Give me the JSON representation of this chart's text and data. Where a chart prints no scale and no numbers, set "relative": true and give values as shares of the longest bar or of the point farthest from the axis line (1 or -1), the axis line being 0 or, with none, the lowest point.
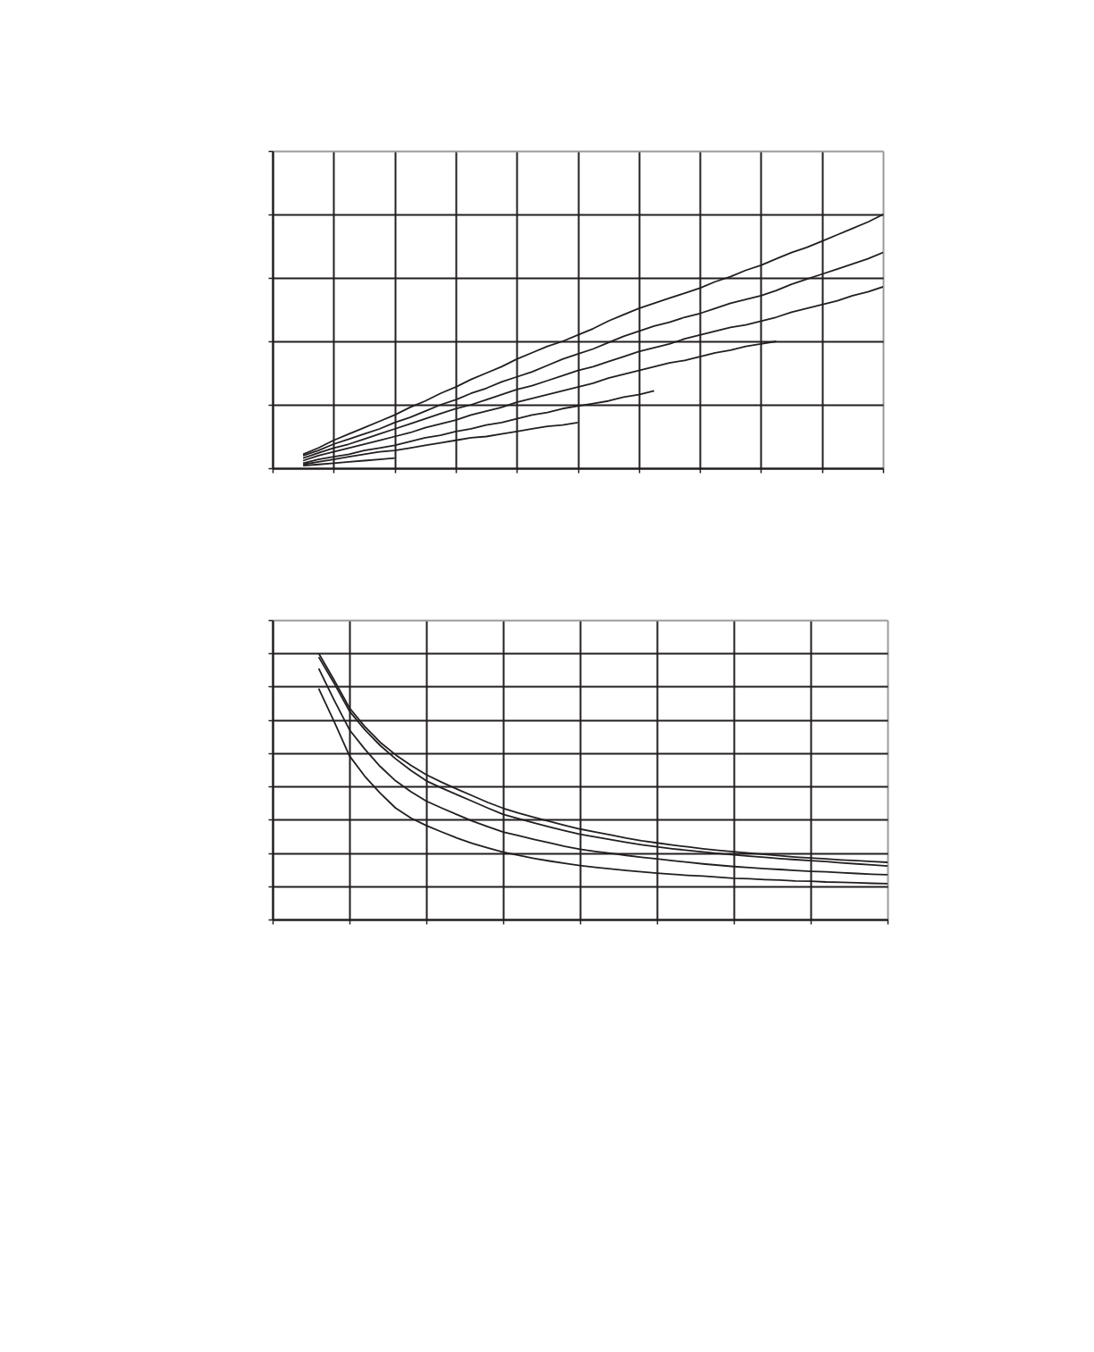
{
  "chart_data": [
    {
      "type": "line",
      "relative": true,
      "tick_labels": false,
      "grid": true,
      "categories": [
        null,
        null,
        null,
        null,
        null,
        null,
        null,
        null,
        null,
        null,
        null,
        null,
        null,
        null,
        null,
        null,
        null,
        null,
        null,
        null,
        null,
        null,
        null,
        null,
        null,
        null,
        null,
        null,
        null,
        null,
        null,
        null,
        null,
        null,
        null,
        null,
        null,
        null,
        null,
        null,
        null
      ],
      "series": [
        {
          "color": "#231f20",
          "values": [
            null,
            null,
            0.055,
            0.08,
            0.11,
            0.135,
            0.16,
            0.185,
            0.21,
            0.24,
            0.265,
            0.295,
            0.32,
            0.35,
            0.375,
            0.4,
            0.43,
            0.455,
            0.48,
            0.5,
            0.525,
            0.55,
            0.58,
            0.605,
            0.63,
            0.65,
            0.67,
            0.69,
            0.71,
            0.735,
            0.755,
            0.78,
            0.8,
            0.825,
            0.85,
            0.87,
            0.895,
            0.92,
            0.945,
            0.97,
            1.0
          ]
        },
        {
          "color": "#231f20",
          "values": [
            null,
            null,
            0.05,
            0.07,
            0.095,
            0.115,
            0.135,
            0.155,
            0.18,
            0.2,
            0.225,
            0.25,
            0.27,
            0.295,
            0.315,
            0.34,
            0.36,
            0.38,
            0.405,
            0.43,
            0.45,
            0.47,
            0.495,
            0.52,
            0.54,
            0.56,
            0.575,
            0.595,
            0.61,
            0.63,
            0.65,
            0.665,
            0.68,
            0.7,
            0.725,
            0.745,
            0.765,
            0.785,
            0.805,
            0.825,
            0.85
          ]
        },
        {
          "color": "#231f20",
          "values": [
            null,
            null,
            0.04,
            0.06,
            0.08,
            0.095,
            0.115,
            0.135,
            0.155,
            0.175,
            0.195,
            0.215,
            0.235,
            0.25,
            0.27,
            0.29,
            0.31,
            0.325,
            0.345,
            0.365,
            0.385,
            0.4,
            0.42,
            0.44,
            0.46,
            0.475,
            0.49,
            0.51,
            0.525,
            0.54,
            0.555,
            0.565,
            0.58,
            0.595,
            0.615,
            0.63,
            0.645,
            0.66,
            0.68,
            0.695,
            0.715
          ]
        },
        {
          "color": "#231f20",
          "values": [
            null,
            null,
            0.03,
            0.05,
            0.065,
            0.08,
            0.095,
            0.11,
            0.125,
            0.14,
            0.16,
            0.175,
            0.19,
            0.21,
            0.225,
            0.24,
            0.26,
            0.275,
            0.29,
            0.305,
            0.32,
            0.335,
            0.355,
            0.37,
            0.385,
            0.4,
            0.415,
            0.425,
            0.44,
            0.455,
            0.465,
            0.48,
            0.49,
            0.5,
            null,
            null,
            null,
            null,
            null,
            null,
            null
          ]
        },
        {
          "color": "#231f20",
          "values": [
            null,
            null,
            0.02,
            0.035,
            0.045,
            0.055,
            0.07,
            0.08,
            0.09,
            0.105,
            0.12,
            0.13,
            0.145,
            0.155,
            0.17,
            0.18,
            0.195,
            0.21,
            0.22,
            0.235,
            0.245,
            0.255,
            0.265,
            0.28,
            0.29,
            0.305,
            null,
            null,
            null,
            null,
            null,
            null,
            null,
            null,
            null,
            null,
            null,
            null,
            null,
            null,
            null
          ]
        },
        {
          "color": "#231f20",
          "values": [
            null,
            null,
            0.015,
            0.025,
            0.035,
            0.045,
            0.055,
            0.065,
            0.07,
            0.08,
            0.09,
            0.1,
            0.11,
            0.12,
            0.125,
            0.135,
            0.145,
            0.155,
            0.165,
            0.17,
            0.18,
            null,
            null,
            null,
            null,
            null,
            null,
            null,
            null,
            null,
            null,
            null,
            null,
            null,
            null,
            null,
            null,
            null,
            null,
            null,
            null
          ]
        },
        {
          "color": "#231f20",
          "values": [
            null,
            null,
            0.01,
            0.015,
            0.02,
            0.025,
            0.03,
            0.035,
            0.04,
            null,
            null,
            null,
            null,
            null,
            null,
            null,
            null,
            null,
            null,
            null,
            null,
            null,
            null,
            null,
            null,
            null,
            null,
            null,
            null,
            null,
            null,
            null,
            null,
            null,
            null,
            null,
            null,
            null,
            null,
            null,
            null
          ]
        }
      ]
    },
    {
      "type": "line",
      "relative": true,
      "tick_labels": false,
      "grid": true,
      "categories": [
        null,
        null,
        null,
        null,
        null,
        null,
        null,
        null,
        null,
        null,
        null,
        null,
        null,
        null,
        null,
        null,
        null,
        null,
        null,
        null,
        null,
        null,
        null,
        null,
        null,
        null,
        null,
        null,
        null,
        null,
        null,
        null,
        null,
        null,
        null,
        null,
        null,
        null,
        null,
        null,
        null
      ],
      "series": [
        {
          "color": "#231f20",
          "values": [
            null,
            null,
            null,
            1.0,
            0.9,
            0.795,
            0.725,
            0.666,
            0.619,
            0.579,
            0.544,
            0.516,
            0.49,
            0.465,
            0.44,
            0.418,
            0.4,
            0.384,
            0.369,
            0.354,
            0.34,
            0.329,
            0.318,
            0.306,
            0.296,
            0.288,
            0.28,
            0.273,
            0.266,
            0.26,
            0.255,
            0.25,
            0.245,
            0.24,
            0.235,
            0.231,
            0.228,
            0.224,
            0.221,
            0.218,
            0.215
          ]
        },
        {
          "color": "#231f20",
          "values": [
            null,
            null,
            null,
            0.986,
            0.888,
            0.783,
            0.713,
            0.654,
            0.604,
            0.56,
            0.521,
            0.494,
            0.469,
            0.444,
            0.419,
            0.395,
            0.379,
            0.363,
            0.348,
            0.334,
            0.32,
            0.31,
            0.3,
            0.29,
            0.281,
            0.273,
            0.266,
            0.26,
            0.254,
            0.248,
            0.243,
            0.238,
            0.234,
            0.229,
            0.225,
            0.221,
            0.218,
            0.213,
            0.209,
            0.205,
            0.201
          ]
        },
        {
          "color": "#231f20",
          "values": [
            null,
            null,
            null,
            0.943,
            0.825,
            0.713,
            0.64,
            0.575,
            0.521,
            0.48,
            0.445,
            0.419,
            0.394,
            0.37,
            0.349,
            0.329,
            0.315,
            0.301,
            0.288,
            0.275,
            0.264,
            0.256,
            0.249,
            0.241,
            0.234,
            0.228,
            0.221,
            0.215,
            0.209,
            0.204,
            0.199,
            0.195,
            0.191,
            0.188,
            0.184,
            0.181,
            0.179,
            0.176,
            0.173,
            0.17,
            0.168
          ]
        },
        {
          "color": "#231f20",
          "values": [
            null,
            null,
            null,
            0.868,
            0.744,
            0.615,
            0.538,
            0.475,
            0.419,
            0.381,
            0.353,
            0.329,
            0.306,
            0.286,
            0.269,
            0.253,
            0.241,
            0.23,
            0.22,
            0.211,
            0.203,
            0.196,
            0.19,
            0.184,
            0.179,
            0.174,
            0.17,
            0.166,
            0.163,
            0.159,
            0.155,
            0.153,
            0.15,
            0.148,
            0.145,
            0.144,
            0.141,
            0.14,
            0.138,
            0.136,
            0.135
          ]
        }
      ]
    }
  ]
}
